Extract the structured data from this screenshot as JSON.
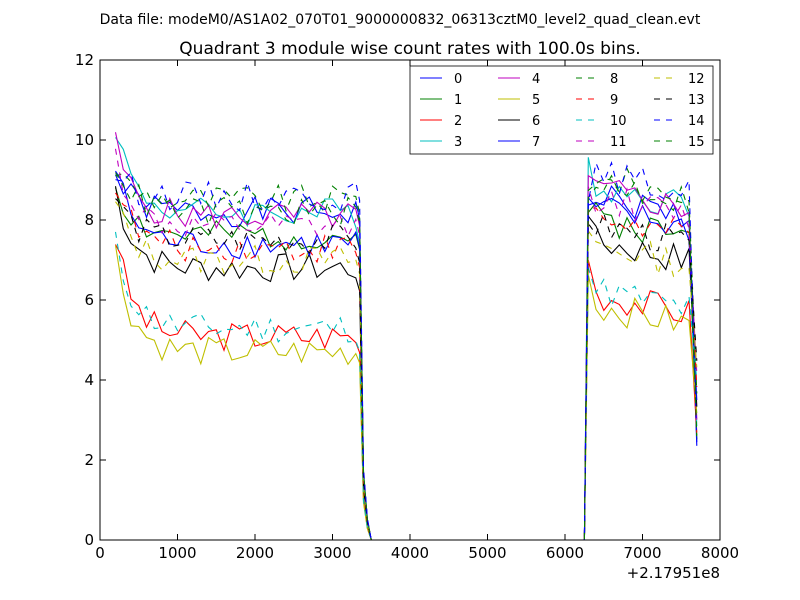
{
  "header": {
    "suptitle": "Data file: modeM0/AS1A02_070T01_9000000832_06313cztM0_level2_quad_clean.evt"
  },
  "chart_data": {
    "type": "line",
    "title": "Quadrant 3 module wise count rates with 100.0s bins.",
    "xlabel": "",
    "ylabel": "",
    "x_offset_label": "+2.17951e8",
    "xlim": [
      0,
      8000
    ],
    "ylim": [
      0,
      12
    ],
    "x_ticks": [
      0,
      1000,
      2000,
      3000,
      4000,
      5000,
      6000,
      7000,
      8000
    ],
    "y_ticks": [
      0,
      2,
      4,
      6,
      8,
      10,
      12
    ],
    "grid": false,
    "legend_position": "top-right",
    "legend_columns": 4,
    "x_segment_1": [
      200,
      300,
      400,
      500,
      600,
      700,
      800,
      900,
      1000,
      1100,
      1200,
      1300,
      1400,
      1500,
      1600,
      1700,
      1800,
      1900,
      2000,
      2100,
      2200,
      2300,
      2400,
      2500,
      2600,
      2700,
      2800,
      2900,
      3000,
      3100,
      3200,
      3300
    ],
    "x_segment_2": [
      6300,
      6400,
      6500,
      6600,
      6700,
      6800,
      6900,
      7000,
      7100,
      7200,
      7300,
      7400,
      7500,
      7600,
      7700
    ],
    "gap": {
      "x": [
        3350,
        3400,
        3450,
        3500,
        6250
      ],
      "fractions": [
        0.95,
        0.2,
        0.06,
        0,
        0
      ]
    },
    "series": [
      {
        "name": "0",
        "color": "#0000ff",
        "style": "solid",
        "base1": 8.2,
        "base2": 8.0,
        "start": 9.1,
        "seed": 1
      },
      {
        "name": "1",
        "color": "#008000",
        "style": "solid",
        "base1": 7.6,
        "base2": 7.5,
        "start": 8.9,
        "seed": 2
      },
      {
        "name": "2",
        "color": "#ff0000",
        "style": "solid",
        "base1": 5.1,
        "base2": 5.6,
        "start": 7.6,
        "seed": 3
      },
      {
        "name": "3",
        "color": "#00bfbf",
        "style": "solid",
        "base1": 8.2,
        "base2": 8.3,
        "start": 10.4,
        "seed": 4
      },
      {
        "name": "4",
        "color": "#bf00bf",
        "style": "solid",
        "base1": 8.1,
        "base2": 8.2,
        "start": 9.9,
        "seed": 5
      },
      {
        "name": "5",
        "color": "#bfbf00",
        "style": "solid",
        "base1": 4.7,
        "base2": 5.3,
        "start": 7.2,
        "seed": 6
      },
      {
        "name": "6",
        "color": "#000000",
        "style": "solid",
        "base1": 6.8,
        "base2": 6.9,
        "start": 8.8,
        "seed": 7
      },
      {
        "name": "7",
        "color": "#0000ff",
        "style": "solid",
        "base1": 7.4,
        "base2": 7.7,
        "start": 9.3,
        "seed": 8
      },
      {
        "name": "8",
        "color": "#008000",
        "style": "dashed",
        "base1": 8.5,
        "base2": 8.5,
        "start": 9.3,
        "seed": 9
      },
      {
        "name": "9",
        "color": "#ff0000",
        "style": "dashed",
        "base1": 7.3,
        "base2": 7.5,
        "start": 9.0,
        "seed": 10
      },
      {
        "name": "10",
        "color": "#00bfbf",
        "style": "dashed",
        "base1": 5.3,
        "base2": 5.7,
        "start": 7.4,
        "seed": 11
      },
      {
        "name": "11",
        "color": "#bf00bf",
        "style": "dashed",
        "base1": 7.8,
        "base2": 8.0,
        "start": 9.6,
        "seed": 12
      },
      {
        "name": "12",
        "color": "#bfbf00",
        "style": "dashed",
        "base1": 7.0,
        "base2": 6.8,
        "start": 8.4,
        "seed": 13
      },
      {
        "name": "13",
        "color": "#000000",
        "style": "dashed",
        "base1": 7.5,
        "base2": 7.3,
        "start": 8.6,
        "seed": 14
      },
      {
        "name": "14",
        "color": "#0000ff",
        "style": "dashed",
        "base1": 8.6,
        "base2": 8.6,
        "start": 9.2,
        "seed": 15
      },
      {
        "name": "15",
        "color": "#008000",
        "style": "dashed",
        "base1": 8.2,
        "base2": 8.4,
        "start": 9.5,
        "seed": 16
      }
    ]
  }
}
